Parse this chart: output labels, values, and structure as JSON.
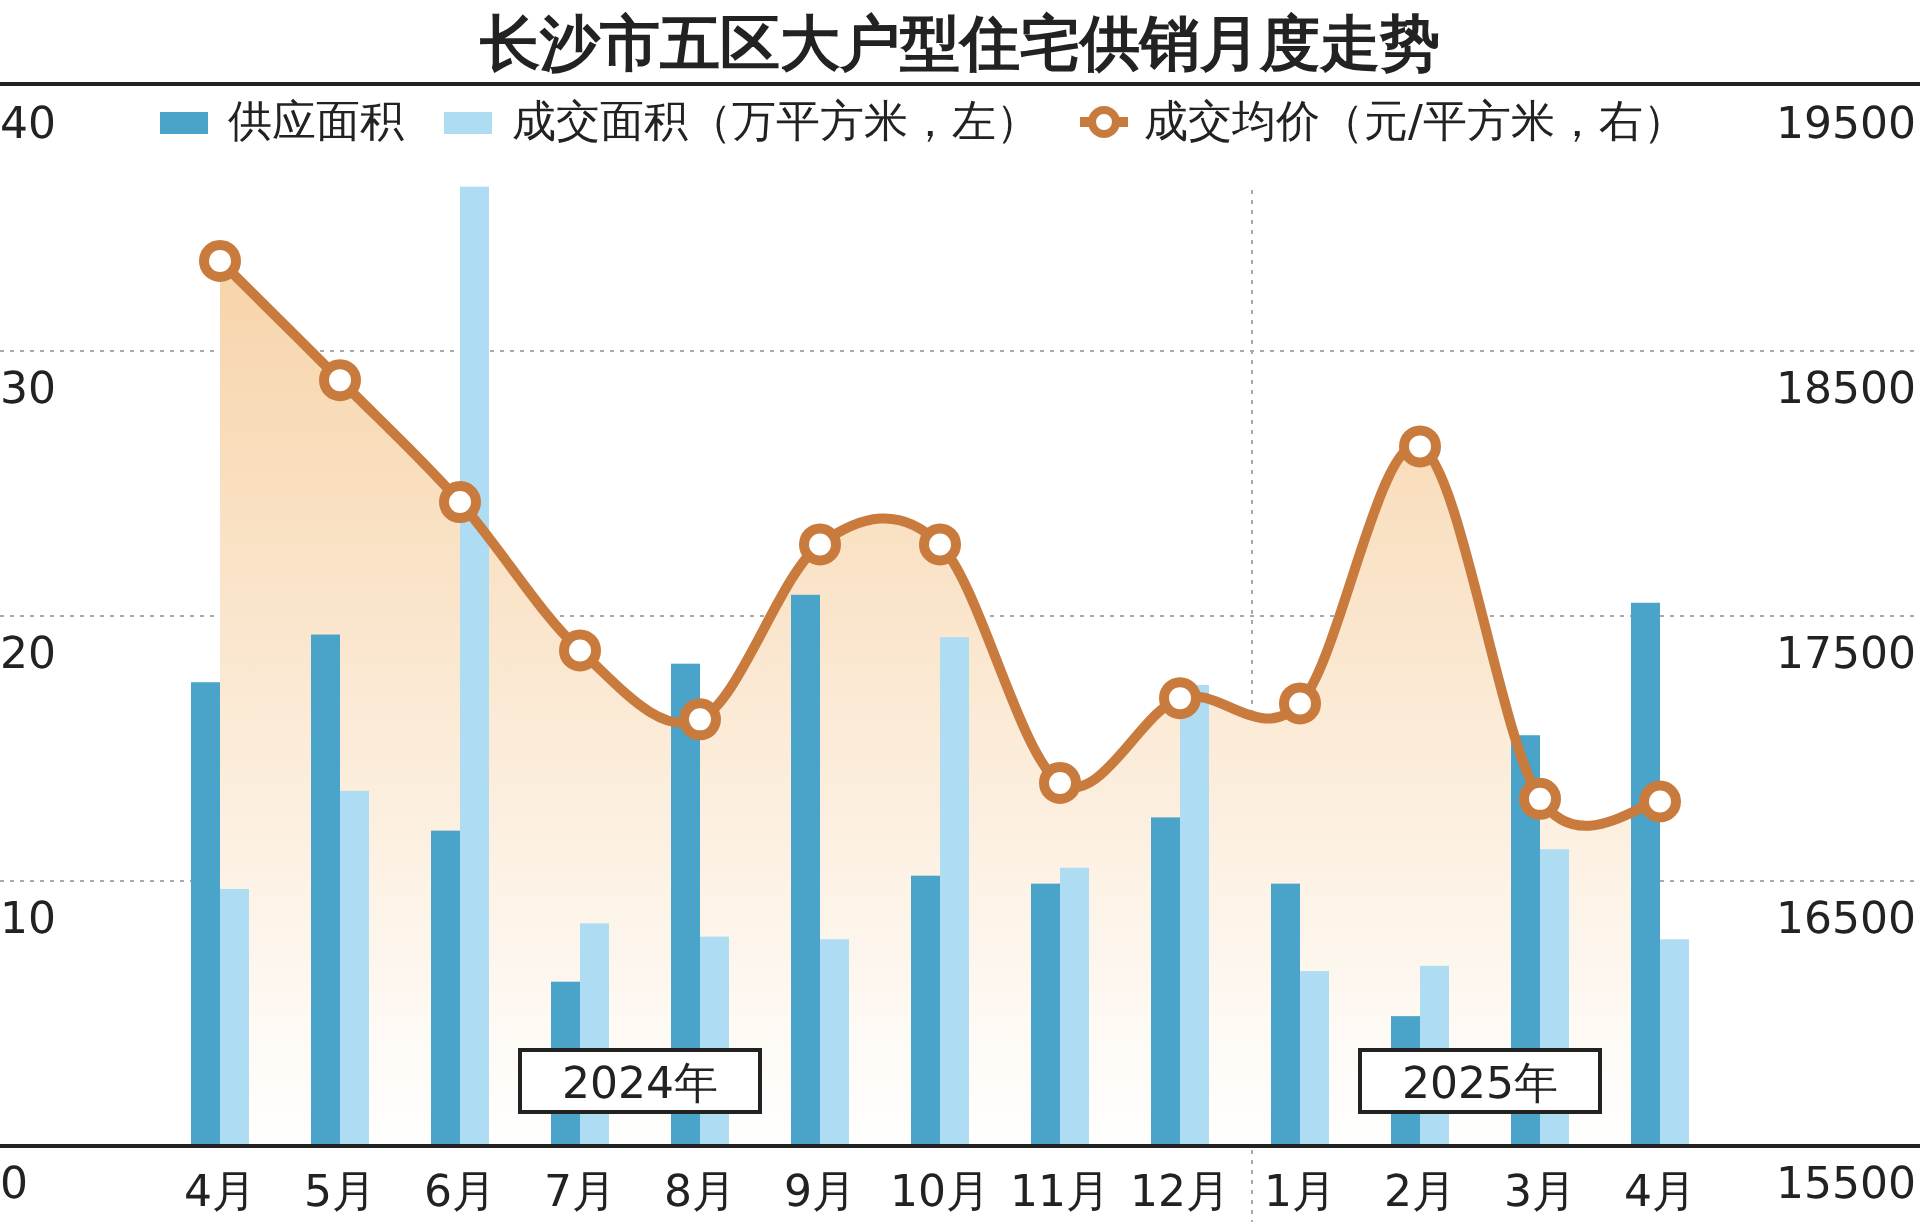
{
  "chart_data": {
    "type": "bar",
    "title": "长沙市五区大户型住宅供销月度走势",
    "categories": [
      "4月",
      "5月",
      "6月",
      "7月",
      "8月",
      "9月",
      "10月",
      "11月",
      "12月",
      "1月",
      "2月",
      "3月",
      "4月"
    ],
    "series": [
      {
        "name": "供应面积",
        "color": "#4aa3c8",
        "values": [
          17.5,
          19.3,
          11.9,
          6.2,
          18.2,
          20.8,
          10.2,
          9.9,
          12.4,
          9.9,
          4.9,
          15.5,
          20.5
        ]
      },
      {
        "name": "成交面积（万平方米，左）",
        "color": "#aedcf3",
        "values": [
          9.7,
          13.4,
          36.2,
          8.4,
          7.9,
          7.8,
          19.2,
          10.5,
          17.4,
          6.6,
          6.8,
          11.2,
          7.8
        ]
      },
      {
        "name": "成交均价（元/平方米，右）",
        "type": "area",
        "axis": "y2",
        "color": "#c97b3e",
        "marker": "circle",
        "values": [
          18840,
          18390,
          17930,
          17370,
          17110,
          17770,
          17770,
          16870,
          17190,
          17170,
          18140,
          16810,
          16800
        ]
      }
    ],
    "ylim": [
      0,
      40
    ],
    "yticks": [
      0,
      10,
      20,
      30,
      40
    ],
    "y2lim": [
      15500,
      19500
    ],
    "y2ticks": [
      15500,
      16500,
      17500,
      18500,
      19500
    ],
    "grid": "y",
    "legend": "top",
    "annotations": [
      "2024年",
      "2025年"
    ]
  }
}
